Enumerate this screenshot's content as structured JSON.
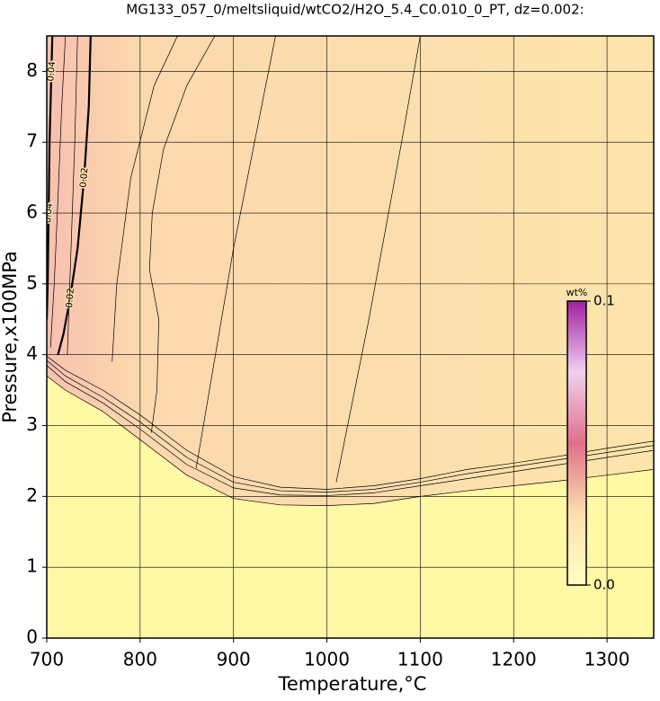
{
  "chart_data": {
    "type": "contour",
    "title": "MG133_057_0/meltsliquid/wtCO2/H2O_5.4_C0.010_0_PT, dz=0.002:",
    "x_label": "Temperature,°C",
    "y_label": "Pressure,x100MPa",
    "xlim": [
      700,
      1350
    ],
    "ylim": [
      0,
      8.5
    ],
    "xticks": [
      700,
      800,
      900,
      1000,
      1100,
      1200,
      1300
    ],
    "yticks": [
      0,
      1,
      2,
      3,
      4,
      5,
      6,
      7,
      8
    ],
    "grid": true,
    "contours": [
      {
        "x": [
          700,
          720,
          760,
          800,
          850,
          900,
          950,
          1000,
          1050,
          1100,
          1150,
          1200,
          1250,
          1300,
          1350
        ],
        "y": [
          3.7,
          3.5,
          3.2,
          2.8,
          2.3,
          1.97,
          1.88,
          1.87,
          1.9,
          2.0,
          2.08,
          2.15,
          2.22,
          2.3,
          2.38
        ]
      },
      {
        "x": [
          700,
          720,
          760,
          800,
          850,
          900,
          950,
          1000,
          1050,
          1100,
          1150,
          1200,
          1250,
          1300,
          1350
        ],
        "y": [
          3.85,
          3.62,
          3.32,
          2.95,
          2.45,
          2.12,
          2.02,
          2.01,
          2.05,
          2.15,
          2.25,
          2.35,
          2.45,
          2.55,
          2.65
        ]
      },
      {
        "x": [
          700,
          720,
          760,
          800,
          850,
          900,
          950,
          1000,
          1050,
          1100,
          1150,
          1200,
          1250,
          1300,
          1350
        ],
        "y": [
          3.92,
          3.7,
          3.4,
          3.05,
          2.55,
          2.2,
          2.08,
          2.06,
          2.1,
          2.2,
          2.32,
          2.42,
          2.52,
          2.62,
          2.72
        ]
      },
      {
        "x": [
          700,
          720,
          760,
          800,
          850,
          900,
          950,
          1000,
          1050,
          1100,
          1150,
          1200,
          1250,
          1300,
          1350
        ],
        "y": [
          3.98,
          3.78,
          3.5,
          3.15,
          2.65,
          2.28,
          2.13,
          2.1,
          2.15,
          2.25,
          2.38,
          2.47,
          2.57,
          2.68,
          2.78
        ]
      },
      {
        "level": 0.02,
        "x": [
          712,
          718,
          725,
          733,
          740,
          745,
          747
        ],
        "y": [
          4.0,
          4.3,
          4.8,
          5.5,
          6.5,
          7.5,
          8.5
        ]
      },
      {
        "level": 0.04,
        "x": [
          700,
          701,
          702,
          703,
          705,
          706
        ],
        "y": [
          4.5,
          5.0,
          6.0,
          7.0,
          8.0,
          8.5
        ]
      },
      {
        "x": [
          704,
          708,
          712,
          716,
          720
        ],
        "y": [
          4.1,
          5.0,
          6.2,
          7.5,
          8.5
        ]
      },
      {
        "x": [
          722,
          726,
          730,
          733
        ],
        "y": [
          4.0,
          5.5,
          7.0,
          8.5
        ]
      },
      {
        "x": [
          770,
          775,
          790,
          815,
          840
        ],
        "y": [
          3.9,
          5.0,
          6.5,
          7.8,
          8.5
        ]
      },
      {
        "x": [
          812,
          818,
          820,
          815,
          810,
          813,
          825,
          850,
          880
        ],
        "y": [
          2.9,
          3.5,
          4.5,
          4.85,
          5.2,
          6.0,
          6.9,
          7.8,
          8.5
        ]
      },
      {
        "x": [
          860,
          900,
          945
        ],
        "y": [
          2.4,
          5.5,
          8.5
        ]
      },
      {
        "x": [
          1010,
          1045,
          1080,
          1100
        ],
        "y": [
          2.2,
          4.5,
          7.0,
          8.5
        ]
      }
    ],
    "colorbar": {
      "label": "wt%",
      "lim": [
        0,
        0.1
      ],
      "ticks": [
        {
          "value": 0,
          "label": "0.0"
        },
        0.1
      ],
      "colors": [
        "#ffffc0",
        "#fde0b0",
        "#e0708a",
        "#f0d0f0",
        "#a020a0"
      ]
    }
  }
}
